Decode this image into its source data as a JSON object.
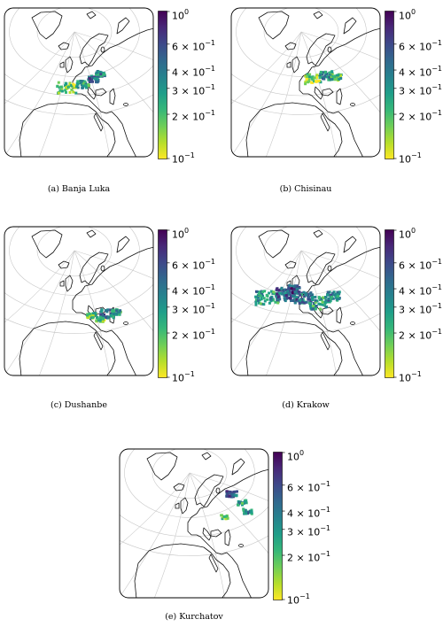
{
  "colors": {
    "viridis": [
      "#fde725",
      "#b5de2b",
      "#6ece58",
      "#35b779",
      "#1f9e89",
      "#26828e",
      "#31688e",
      "#3e4989",
      "#482878",
      "#440154"
    ],
    "coast": "#111111",
    "graticule": "#c8c8c8"
  },
  "colorbar": {
    "scale": "log",
    "range": [
      0.1,
      1
    ],
    "ticks": [
      {
        "value": 1.0,
        "base": "10",
        "exp": "0"
      },
      {
        "value": 0.6,
        "base": "6 × 10",
        "exp": "−1"
      },
      {
        "value": 0.4,
        "base": "4 × 10",
        "exp": "−1"
      },
      {
        "value": 0.3,
        "base": "3 × 10",
        "exp": "−1"
      },
      {
        "value": 0.2,
        "base": "2 × 10",
        "exp": "−1"
      },
      {
        "value": 0.1,
        "base": "10",
        "exp": "−1"
      }
    ]
  },
  "panels": [
    {
      "id": "a",
      "caption": "(a) Banja Luka"
    },
    {
      "id": "b",
      "caption": "(b) Chisinau"
    },
    {
      "id": "c",
      "caption": "(c) Dushanbe"
    },
    {
      "id": "d",
      "caption": "(d) Krakow"
    },
    {
      "id": "e",
      "caption": "(e) Kurchatov"
    }
  ]
}
